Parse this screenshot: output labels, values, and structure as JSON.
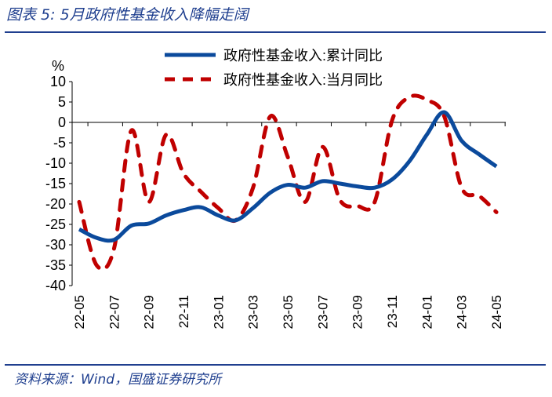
{
  "header": {
    "title": "图表 5:  5月政府性基金收入降幅走阔"
  },
  "footer": {
    "source": "资料来源：Wind，国盛证券研究所"
  },
  "colors": {
    "cumulative": "#0b4a9c",
    "monthly": "#c00000",
    "frame": "#1f3f8f"
  },
  "chart_data": {
    "type": "line",
    "ylabel": "%",
    "ylim": [
      -40,
      10
    ],
    "yticks": [
      10,
      5,
      0,
      -5,
      -10,
      -15,
      -20,
      -25,
      -30,
      -35,
      -40
    ],
    "x": [
      "22-05",
      "22-06",
      "22-07",
      "22-08",
      "22-09",
      "22-10",
      "22-11",
      "22-12",
      "23-01",
      "23-02",
      "23-03",
      "23-04",
      "23-05",
      "23-06",
      "23-07",
      "23-08",
      "23-09",
      "23-10",
      "23-11",
      "23-12",
      "24-01",
      "24-02",
      "24-03",
      "24-04",
      "24-05"
    ],
    "xtick_labels": [
      "22-05",
      "22-07",
      "22-09",
      "22-11",
      "23-01",
      "23-03",
      "23-05",
      "23-07",
      "23-09",
      "23-11",
      "24-01",
      "24-03",
      "24-05"
    ],
    "legend_placement": "top-center",
    "series": [
      {
        "name": "政府性基金收入:累计同比",
        "style": "solid",
        "values": [
          -26.2,
          -28.3,
          -28.8,
          -25.3,
          -24.8,
          -22.8,
          -21.5,
          -20.8,
          -22.8,
          -24,
          -21,
          -17.2,
          -15.3,
          -16,
          -14.4,
          -15,
          -15.7,
          -16,
          -14,
          -9.5,
          -3,
          2.5,
          -4.5,
          -7.8,
          -10.8
        ]
      },
      {
        "name": "政府性基金收入:当月同比",
        "style": "dashed",
        "values": [
          -19.5,
          -35,
          -31,
          -2,
          -19.5,
          -3,
          -12.5,
          -17,
          -21,
          -24,
          -16,
          1.5,
          -8.5,
          -19.5,
          -6,
          -19,
          -20.5,
          -19.5,
          0.5,
          6.2,
          5.5,
          1.5,
          -16,
          -18,
          -22
        ]
      }
    ]
  }
}
